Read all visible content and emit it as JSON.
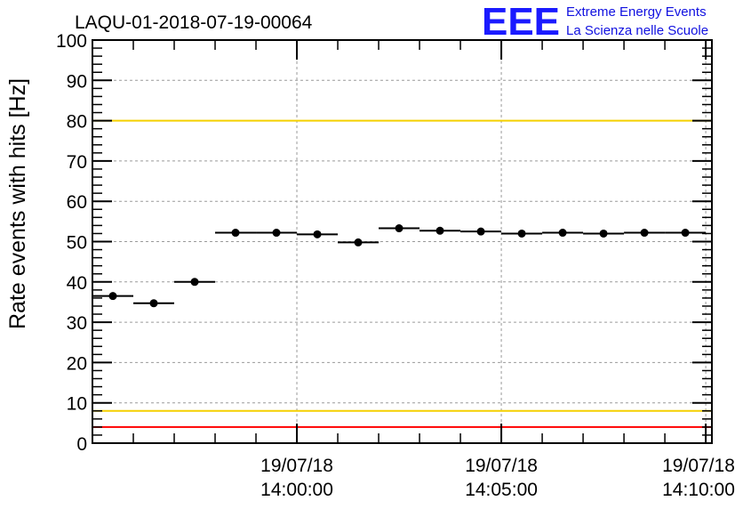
{
  "chart_data": {
    "type": "scatter",
    "title": "LAQU-01-2018-07-19-00064",
    "ylabel": "Rate events with hits [Hz]",
    "xlabel": "",
    "ylim": [
      0,
      100
    ],
    "yticks": [
      "0",
      "10",
      "20",
      "30",
      "40",
      "50",
      "60",
      "70",
      "80",
      "90",
      "100"
    ],
    "x_unit": "minutes since 19/07/18 13:55:00",
    "xlim": [
      0,
      10.5
    ],
    "xticks": [
      {
        "x": 5,
        "date": "19/07/18",
        "time": "14:00:00"
      },
      {
        "x": 10,
        "date": "19/07/18",
        "time": "14:05:00"
      },
      {
        "x": 15,
        "date": "19/07/18",
        "time": "14:10:00"
      }
    ],
    "grid": true,
    "reference_lines": [
      {
        "y": 100,
        "color": "#ff0000"
      },
      {
        "y": 80,
        "color": "#f5d000"
      },
      {
        "y": 8,
        "color": "#f5d000"
      },
      {
        "y": 4,
        "color": "#ff0000"
      }
    ],
    "series": [
      {
        "points": [
          {
            "time": "13:55:30",
            "y": 36.5
          },
          {
            "time": "13:56:30",
            "y": 34.7
          },
          {
            "time": "13:57:30",
            "y": 40.0
          },
          {
            "time": "13:58:30",
            "y": 52.2
          },
          {
            "time": "13:59:30",
            "y": 52.2
          },
          {
            "time": "14:00:30",
            "y": 51.8
          },
          {
            "time": "14:01:30",
            "y": 49.8
          },
          {
            "time": "14:02:30",
            "y": 53.3
          },
          {
            "time": "14:03:30",
            "y": 52.7
          },
          {
            "time": "14:04:30",
            "y": 52.5
          },
          {
            "time": "14:05:30",
            "y": 52.0
          },
          {
            "time": "14:06:30",
            "y": 52.2
          },
          {
            "time": "14:07:30",
            "y": 52.0
          },
          {
            "time": "14:08:30",
            "y": 52.2
          },
          {
            "time": "14:09:30",
            "y": 52.2
          }
        ],
        "bin_width_min": 1,
        "color": "#000000"
      }
    ]
  },
  "logo": {
    "mark": "EEE",
    "line1": "Extreme Energy Events",
    "line2": "La Scienza nelle Scuole",
    "color": "#1a1aff"
  }
}
